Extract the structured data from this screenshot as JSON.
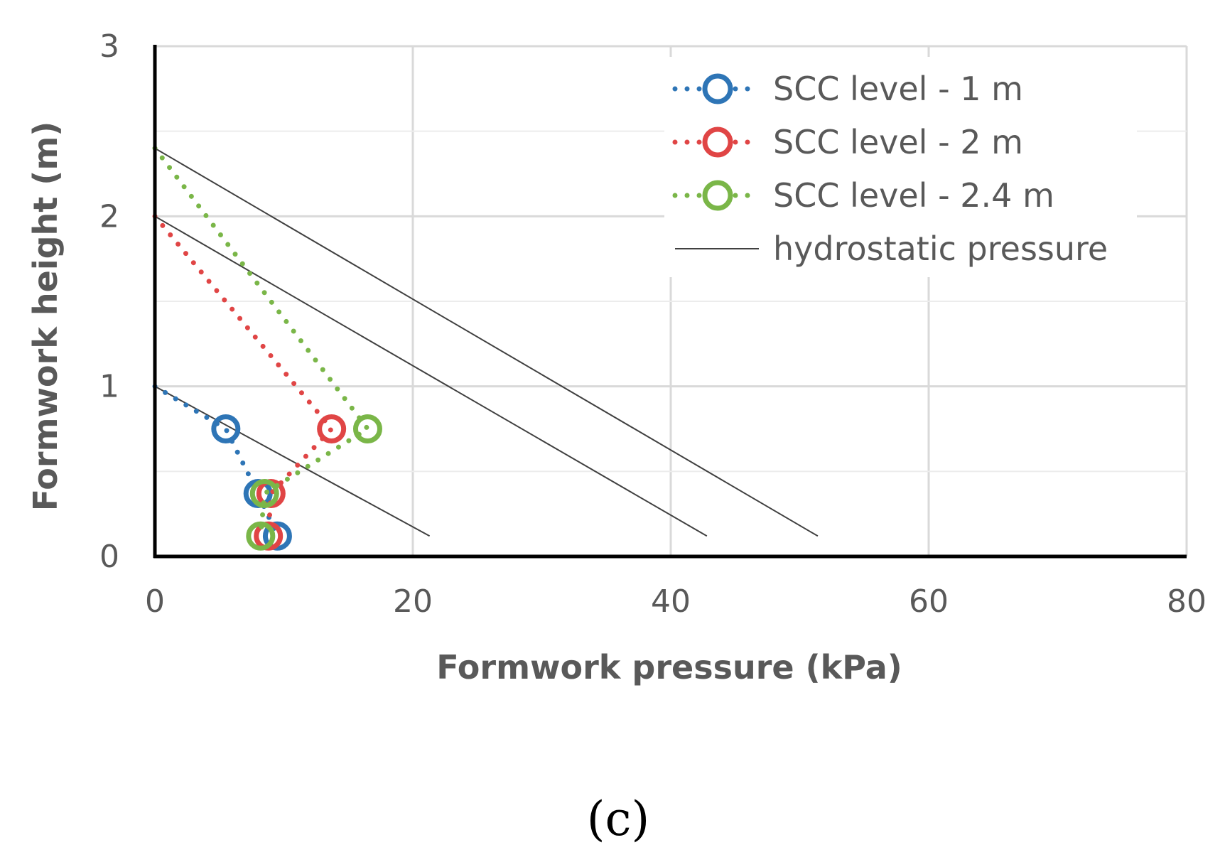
{
  "panel_label": "(c)",
  "chart_data": {
    "type": "scatter",
    "xlabel": "Formwork pressure (kPa)",
    "ylabel": "Formwork height (m)",
    "xlim": [
      0,
      80
    ],
    "ylim": [
      0,
      3
    ],
    "x_ticks": [
      "0",
      "20",
      "40",
      "60",
      "80"
    ],
    "y_ticks": [
      "0",
      "1",
      "2",
      "3"
    ],
    "grid": true,
    "legend_position": "top-right",
    "series": [
      {
        "name": "SCC level - 1 m",
        "color": "#2E75B6",
        "line_style": "dotted",
        "marker": "open-circle",
        "points": [
          [
            0,
            1.0
          ],
          [
            5.5,
            0.75
          ],
          [
            8.0,
            0.37
          ],
          [
            9.5,
            0.12
          ]
        ]
      },
      {
        "name": "SCC level - 2 m",
        "color": "#E04545",
        "line_style": "dotted",
        "marker": "open-circle",
        "points": [
          [
            0,
            2.0
          ],
          [
            13.7,
            0.75
          ],
          [
            9.0,
            0.37
          ],
          [
            8.8,
            0.12
          ]
        ]
      },
      {
        "name": "SCC level - 2.4 m",
        "color": "#7AB648",
        "line_style": "dotted",
        "marker": "open-circle",
        "points": [
          [
            0,
            2.4
          ],
          [
            16.5,
            0.75
          ],
          [
            8.5,
            0.37
          ],
          [
            8.2,
            0.12
          ]
        ]
      },
      {
        "name": "hydrostatic pressure",
        "color": "#404040",
        "line_style": "solid",
        "marker": "none",
        "lines": [
          [
            [
              0,
              1.0
            ],
            [
              21.3,
              0.12
            ]
          ],
          [
            [
              0,
              2.0
            ],
            [
              42.8,
              0.12
            ]
          ],
          [
            [
              0,
              2.4
            ],
            [
              51.4,
              0.12
            ]
          ]
        ]
      }
    ]
  }
}
